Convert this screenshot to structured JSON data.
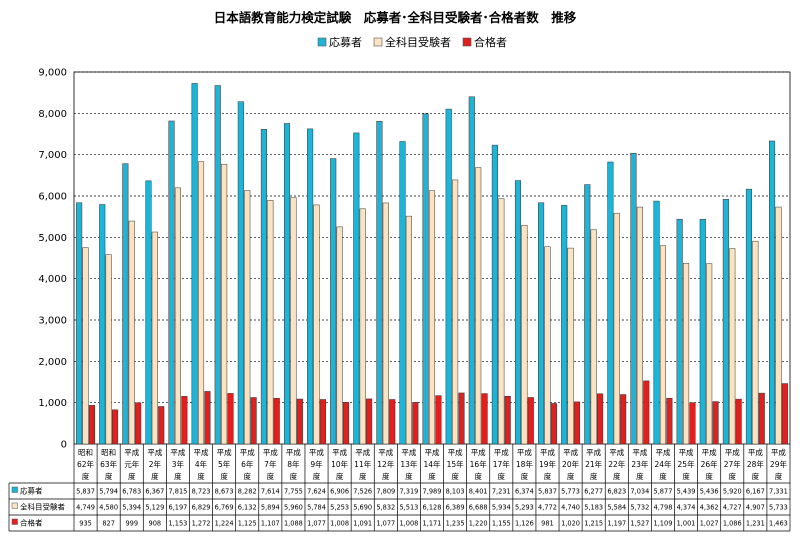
{
  "chart_data": {
    "type": "bar",
    "title": "日本語教育能力検定試験　応募者･全科目受験者･合格者数　推移",
    "categories": [
      [
        "昭和",
        "62年",
        "度"
      ],
      [
        "昭和",
        "63年",
        "度"
      ],
      [
        "平成",
        "元年",
        "度"
      ],
      [
        "平成",
        "2年",
        "度"
      ],
      [
        "平成",
        "3年",
        "度"
      ],
      [
        "平成",
        "4年",
        "度"
      ],
      [
        "平成",
        "5年",
        "度"
      ],
      [
        "平成",
        "6年",
        "度"
      ],
      [
        "平成",
        "7年",
        "度"
      ],
      [
        "平成",
        "8年",
        "度"
      ],
      [
        "平成",
        "9年",
        "度"
      ],
      [
        "平成",
        "10年",
        "度"
      ],
      [
        "平成",
        "11年",
        "度"
      ],
      [
        "平成",
        "12年",
        "度"
      ],
      [
        "平成",
        "13年",
        "度"
      ],
      [
        "平成",
        "14年",
        "度"
      ],
      [
        "平成",
        "15年",
        "度"
      ],
      [
        "平成",
        "16年",
        "度"
      ],
      [
        "平成",
        "17年",
        "度"
      ],
      [
        "平成",
        "18年",
        "度"
      ],
      [
        "平成",
        "19年",
        "度"
      ],
      [
        "平成",
        "20年",
        "度"
      ],
      [
        "平成",
        "21年",
        "度"
      ],
      [
        "平成",
        "22年",
        "度"
      ],
      [
        "平成",
        "23年",
        "度"
      ],
      [
        "平成",
        "24年",
        "度"
      ],
      [
        "平成",
        "25年",
        "度"
      ],
      [
        "平成",
        "26年",
        "度"
      ],
      [
        "平成",
        "27年",
        "度"
      ],
      [
        "平成",
        "28年",
        "度"
      ],
      [
        "平成",
        "29年",
        "度"
      ]
    ],
    "series": [
      {
        "name": "応募者",
        "color": "#1fb3d6",
        "values": [
          5837,
          5794,
          6783,
          6367,
          7815,
          8723,
          8673,
          8282,
          7614,
          7755,
          7624,
          6906,
          7526,
          7809,
          7319,
          7989,
          8103,
          8401,
          7231,
          6374,
          5837,
          5773,
          6277,
          6823,
          7034,
          5877,
          5439,
          5436,
          5920,
          6167,
          7331
        ]
      },
      {
        "name": "全科目受験者",
        "color": "#fbe3c2",
        "values": [
          4749,
          4580,
          5394,
          5129,
          6197,
          6829,
          6769,
          6132,
          5894,
          5960,
          5784,
          5253,
          5690,
          5832,
          5513,
          6128,
          6389,
          6688,
          5934,
          5293,
          4772,
          4740,
          5183,
          5584,
          5732,
          4798,
          4374,
          4362,
          4727,
          4907,
          5733
        ]
      },
      {
        "name": "合格者",
        "color": "#e0201e",
        "values": [
          935,
          827,
          999,
          908,
          1153,
          1272,
          1224,
          1125,
          1107,
          1088,
          1077,
          1008,
          1091,
          1077,
          1008,
          1171,
          1235,
          1220,
          1155,
          1126,
          981,
          1020,
          1215,
          1197,
          1527,
          1109,
          1001,
          1027,
          1086,
          1231,
          1463
        ]
      }
    ],
    "ylim": [
      0,
      9000
    ],
    "yticks": [
      "0",
      "1,000",
      "2,000",
      "3,000",
      "4,000",
      "5,000",
      "6,000",
      "7,000",
      "8,000",
      "9,000"
    ],
    "grid": true,
    "legend": "top-center",
    "data_table": [
      {
        "label": "応募者",
        "cells": [
          "5,837",
          "5,794",
          "6,783",
          "6,367",
          "7,815",
          "8,723",
          "8,673",
          "8,282",
          "7,614",
          "7,755",
          "7,624",
          "6,906",
          "7,526",
          "7,809",
          "7,319",
          "7,989",
          "8,103",
          "8,401",
          "7,231",
          "6,374",
          "5,837",
          "5,773",
          "6,277",
          "6,823",
          "7,034",
          "5,877",
          "5,439",
          "5,436",
          "5,920",
          "6,167",
          "7,331"
        ]
      },
      {
        "label": "全科目受験者",
        "cells": [
          "4,749",
          "4,580",
          "5,394",
          "5,129",
          "6,197",
          "6,829",
          "6,769",
          "6,132",
          "5,894",
          "5,960",
          "5,784",
          "5,253",
          "5,690",
          "5,832",
          "5,513",
          "6,128",
          "6,389",
          "6,688",
          "5,934",
          "5,293",
          "4,772",
          "4,740",
          "5,183",
          "5,584",
          "5,732",
          "4,798",
          "4,374",
          "4,362",
          "4,727",
          "4,907",
          "5,733"
        ]
      },
      {
        "label": "合格者",
        "cells": [
          "935",
          "827",
          "999",
          "908",
          "1,153",
          "1,272",
          "1,224",
          "1,125",
          "1,107",
          "1,088",
          "1,077",
          "1,008",
          "1,091",
          "1,077",
          "1,008",
          "1,171",
          "1,235",
          "1,220",
          "1,155",
          "1,126",
          "981",
          "1,020",
          "1,215",
          "1,197",
          "1,527",
          "1,109",
          "1,001",
          "1,027",
          "1,086",
          "1,231",
          "1,463"
        ]
      }
    ]
  }
}
